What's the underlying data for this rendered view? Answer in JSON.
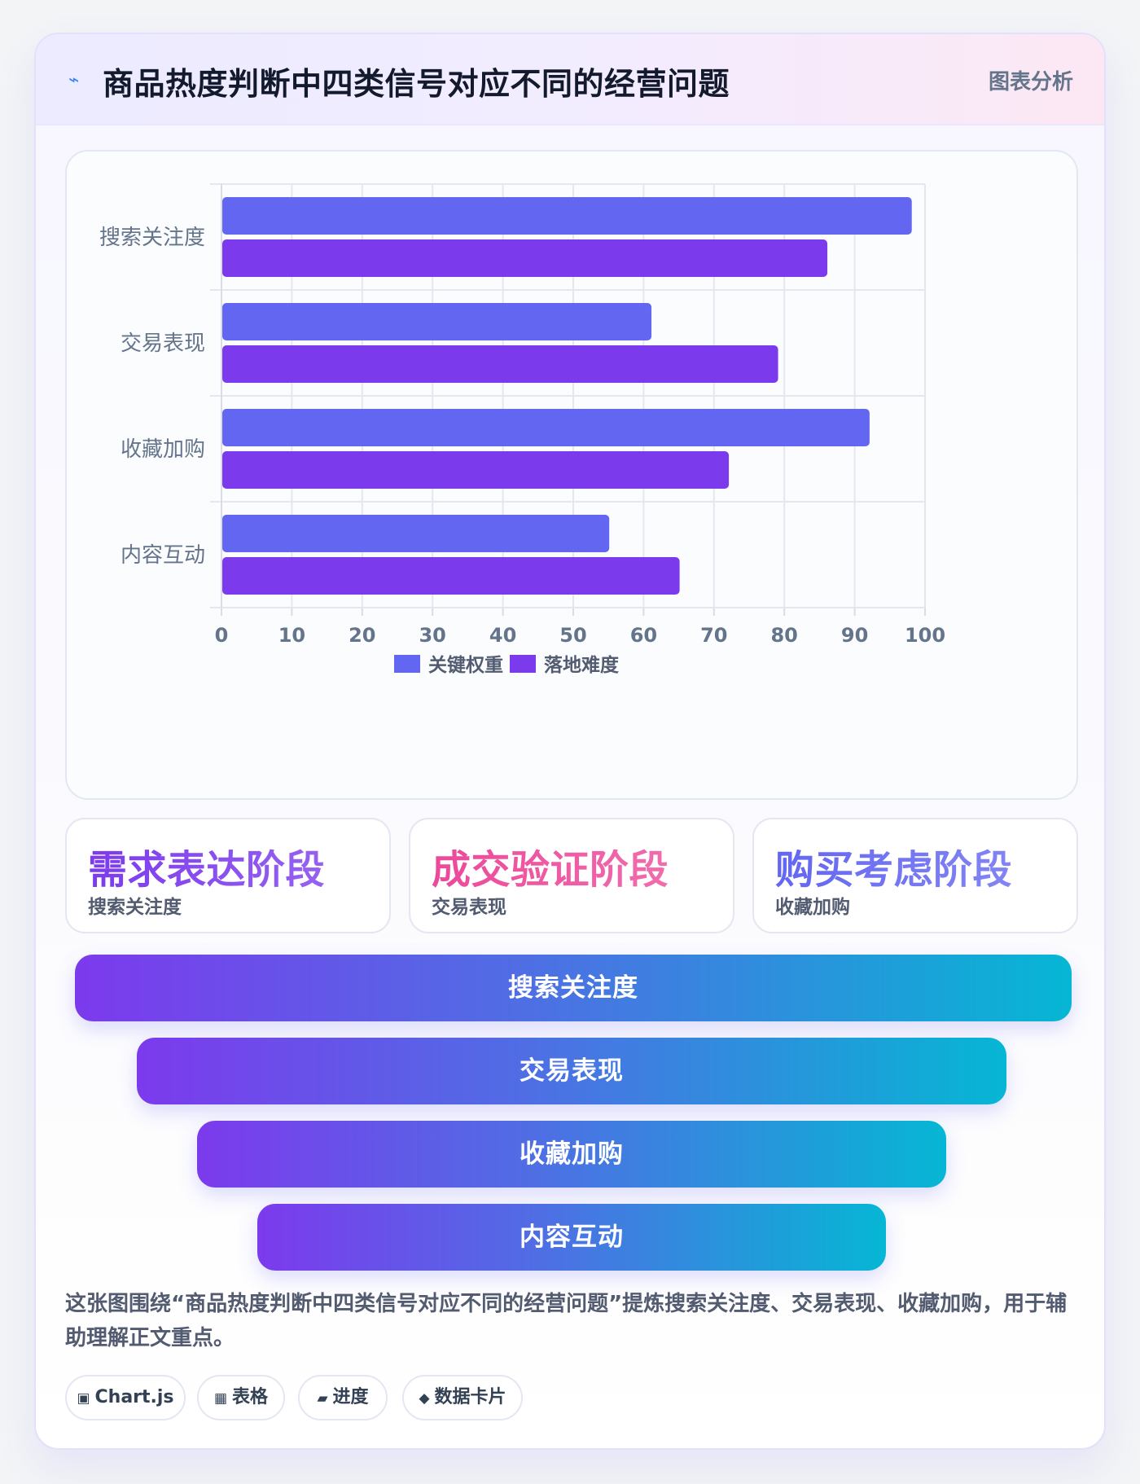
{
  "header": {
    "icon": "lightning-icon",
    "icon_glyph": "⌁",
    "title": "商品热度判断中四类信号对应不同的经营问题",
    "badge": "图表分析"
  },
  "chart_data": {
    "type": "bar",
    "orientation": "horizontal",
    "categories": [
      "搜索关注度",
      "交易表现",
      "收藏加购",
      "内容互动"
    ],
    "series": [
      {
        "name": "关键权重",
        "values": [
          98,
          61,
          92,
          55
        ],
        "color": "#6366f1"
      },
      {
        "name": "落地难度",
        "values": [
          86,
          79,
          72,
          65
        ],
        "color": "#7c3aed"
      }
    ],
    "xlim": [
      0,
      100
    ],
    "x_ticks": [
      "0",
      "10",
      "20",
      "30",
      "40",
      "50",
      "60",
      "70",
      "80",
      "90",
      "100"
    ],
    "grid": true,
    "legend_position": "bottom-center",
    "title": "",
    "xlabel": "",
    "ylabel": ""
  },
  "stages": [
    {
      "title": "需求表达阶段",
      "sub": "搜索关注度",
      "color": "#7c3aed"
    },
    {
      "title": "成交验证阶段",
      "sub": "交易表现",
      "color": "#ec4899"
    },
    {
      "title": "购买考虑阶段",
      "sub": "收藏加购",
      "color": "#6366f1"
    }
  ],
  "funnel": [
    "搜索关注度",
    "交易表现",
    "收藏加购",
    "内容互动"
  ],
  "summary": "这张图围绕“商品热度判断中四类信号对应不同的经营问题”提炼搜索关注度、交易表现、收藏加购，用于辅助理解正文重点。",
  "tags": [
    {
      "icon": "chip-icon",
      "glyph": "▣",
      "label": "Chart.js"
    },
    {
      "icon": "table-icon",
      "glyph": "▦",
      "label": "表格"
    },
    {
      "icon": "progress-icon",
      "glyph": "▰",
      "label": "进度"
    },
    {
      "icon": "diamond-icon",
      "glyph": "◆",
      "label": "数据卡片"
    }
  ]
}
